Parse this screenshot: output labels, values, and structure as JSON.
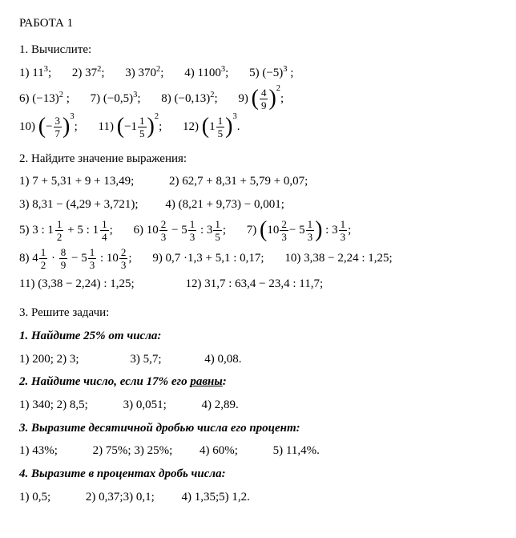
{
  "title": "РАБОТА 1",
  "s1": {
    "head": "1. Вычислите:",
    "r1": {
      "i1": "1) 11",
      "e1": "3",
      "i2": "2) 37",
      "e2": "2",
      "i3": "3) 370",
      "e3": "2",
      "i4": "4) 1100",
      "e4": "3",
      "i5": "5) (−5)",
      "e5": "3"
    },
    "r2": {
      "i6": "6) (−13)",
      "e6": "2",
      "i7": "7) (−0,5)",
      "e7": "3",
      "i8": "8) (−0,13)",
      "e8": "2",
      "i9n": "9) ",
      "f9n": "4",
      "f9d": "9",
      "e9": "2"
    },
    "r3": {
      "i10n": "10) ",
      "neg": "−",
      "f10n": "3",
      "f10d": "7",
      "e10": "3",
      "i11n": "11) ",
      "m11w": "−1",
      "m11n": "1",
      "m11d": "5",
      "e11": "2",
      "i12n": "12) ",
      "m12w": "1",
      "m12n": "1",
      "m12d": "5",
      "e12": "3"
    }
  },
  "s2": {
    "head": "2. Найдите значение выражения:",
    "r1": {
      "a": "1) 7 + 5,31 + 9 + 13,49;",
      "b": "2) 62,7 + 8,31 + 5,79 + 0,07;"
    },
    "r2": {
      "a": "3) 8,31 − (4,29 + 3,721);",
      "b": "4) (8,21 + 9,73) − 0,001;"
    },
    "r3": {
      "p5a": "5) 3 : ",
      "m5aw": "1",
      "m5an": "1",
      "m5ad": "2",
      "p5b": " + 5 : ",
      "m5bw": "1",
      "m5bn": "1",
      "m5bd": "4",
      "p5c": ";",
      "p6a": "6) 10",
      "f6an": "2",
      "f6ad": "3",
      "p6b": " − 5",
      "f6bn": "1",
      "f6bd": "3",
      "p6c": " : 3",
      "f6cn": "1",
      "f6cd": "5",
      "p6d": ";",
      "p7a": "7) ",
      "p7b": "10",
      "f7an": "2",
      "f7ad": "3",
      "p7c": " − 5",
      "f7bn": "1",
      "f7bd": "3",
      "p7d": " : 3",
      "f7cn": "1",
      "f7cd": "3",
      "p7e": ";"
    },
    "r4": {
      "p8a": "8) 4",
      "f8an": "1",
      "f8ad": "2",
      "p8b": " · ",
      "f8bn": "8",
      "f8bd": "9",
      "p8c": " − 5",
      "f8cn": "1",
      "f8cd": "3",
      "p8d": " : 10",
      "f8dn": "2",
      "f8dd": "3",
      "p8e": ";",
      "b": "9) 0,7 ·1,3 + 5,1 : 0,17;",
      "c": "10) 3,38 − 2,24 : 1,25;"
    },
    "r5": {
      "a": "11) (3,38 − 2,24) : 1,25;",
      "b": "12) 31,7 : 63,4 − 23,4 : 11,7;"
    }
  },
  "s3head": "3. Решите задачи:",
  "t1": {
    "head": "1. Найдите 25% от числа:",
    "a": "1) 200; 2) 3;",
    "b": "3) 5,7;",
    "c": "4) 0,08."
  },
  "t2": {
    "head_a": "2. Найдите число, если 17% его ",
    "head_b": "равны",
    "head_c": ":",
    "a": "1) 340; 2) 8,5;",
    "b": "3) 0,051;",
    "c": "4) 2,89."
  },
  "t3": {
    "head": "3. Выразите десятичной дробью числа его процент:",
    "a": "1) 43%;",
    "b": "2) 75%; 3) 25%;",
    "c": "4) 60%;",
    "d": "5) 11,4%."
  },
  "t4": {
    "head": "4. Выразите в процентах дробь числа:",
    "a": "1) 0,5;",
    "b": "2) 0,37;3) 0,1;",
    "c": "4) 1,35;5) 1,2."
  }
}
